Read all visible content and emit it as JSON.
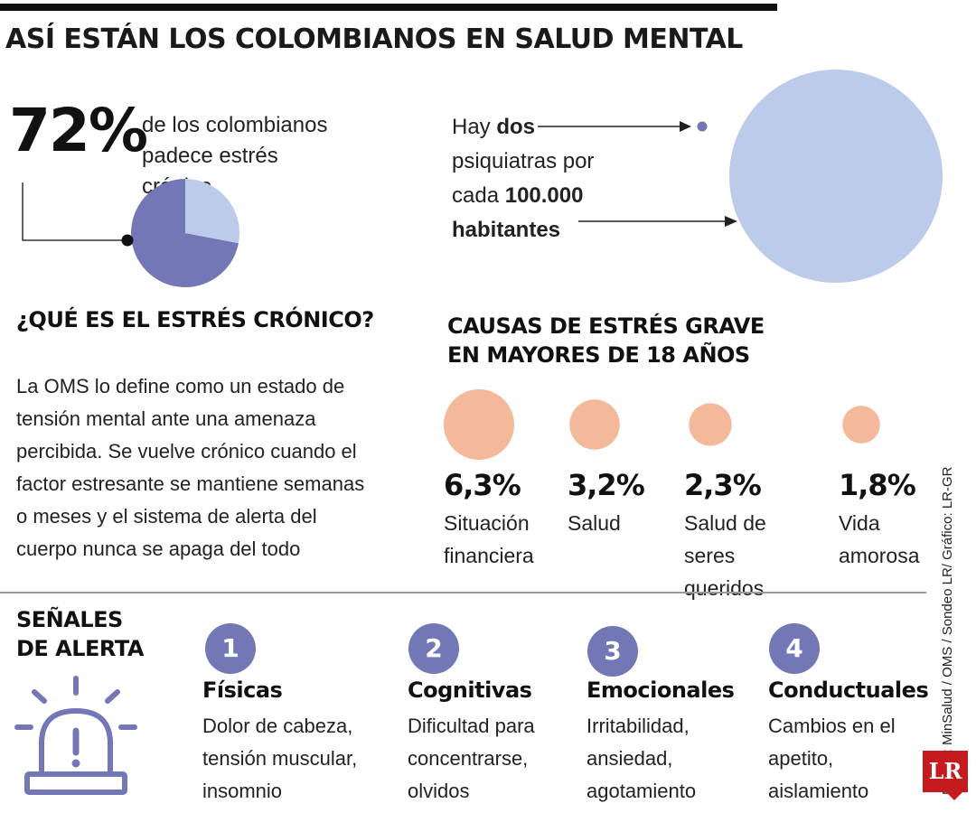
{
  "title": "ASÍ ESTÁN LOS COLOMBIANOS EN SALUD MENTAL",
  "colors": {
    "pie_main": "#7377b5",
    "pie_rest": "#bccbea",
    "big_circle": "#bccbea",
    "small_dot": "#7377b5",
    "cause_bubble": "#f4b89a",
    "number_circle": "#7377b5",
    "logo": "#c51b1f"
  },
  "stress_stat": {
    "value": "72%",
    "description": "de los colombianos padece estrés crónico"
  },
  "psychiatrists": {
    "line1_pre": "Hay ",
    "line1_bold": "dos",
    "line2": "psiquiatras por",
    "line3_pre": "cada ",
    "line3_bold": "100.000",
    "line4_bold": "habitantes"
  },
  "definition": {
    "heading": "¿QUÉ ES EL ESTRÉS CRÓNICO?",
    "text": "La OMS lo define como un estado de tensión mental ante una amenaza percibida. Se vuelve crónico cuando el factor estresante se mantiene semanas o meses y el sistema de alerta del cuerpo nunca se apaga del todo"
  },
  "causes": {
    "heading_line1": "CAUSAS DE ESTRÉS GRAVE",
    "heading_line2": "EN MAYORES DE 18 AÑOS",
    "items": [
      {
        "pct": "6,3%",
        "label": "Situación financiera"
      },
      {
        "pct": "3,2%",
        "label": "Salud"
      },
      {
        "pct": "2,3%",
        "label": "Salud de seres queridos"
      },
      {
        "pct": "1,8%",
        "label": "Vida amorosa"
      }
    ]
  },
  "signals": {
    "heading_line1": "SEÑALES",
    "heading_line2": "DE ALERTA",
    "icon": "alarm-siren-icon",
    "items": [
      {
        "number": "1",
        "title": "Físicas",
        "desc": "Dolor de cabeza, tensión muscular, insomnio"
      },
      {
        "number": "2",
        "title": "Cognitivas",
        "desc": "Dificultad para concentrarse, olvidos"
      },
      {
        "number": "3",
        "title": "Emocionales",
        "desc": "Irritabilidad, ansiedad, agotamiento"
      },
      {
        "number": "4",
        "title": "Conductuales",
        "desc": "Cambios en el apetito, aislamiento"
      }
    ]
  },
  "source": "Fuente: MinSalud / OMS / Sondeo LR/ Gráfico: LR-GR",
  "logo": "LR",
  "chart_data": [
    {
      "type": "pie",
      "slices": [
        {
          "value": 72
        },
        {
          "value": 28
        }
      ]
    },
    {
      "type": "scatter",
      "series": [
        {
          "label": "6,3%",
          "value": 6.3
        },
        {
          "label": "3,2%",
          "value": 3.2
        },
        {
          "label": "2,3%",
          "value": 2.3
        },
        {
          "label": "1,8%",
          "value": 1.8
        }
      ]
    }
  ]
}
